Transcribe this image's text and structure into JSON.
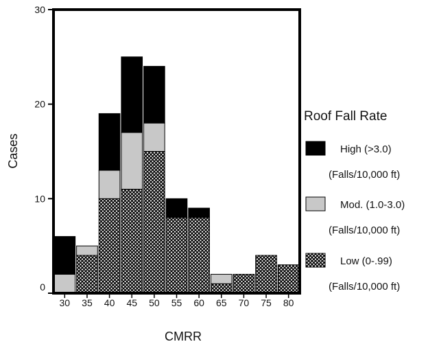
{
  "chart_data": {
    "type": "bar",
    "stacked": true,
    "xlabel": "CMRR",
    "ylabel": "Cases",
    "ylim": [
      0,
      30
    ],
    "yticks": [
      0,
      10,
      20,
      30
    ],
    "categories": [
      "30",
      "35",
      "40",
      "45",
      "50",
      "55",
      "60",
      "65",
      "70",
      "75",
      "80"
    ],
    "series": [
      {
        "key": "low",
        "fill": "crosshatch",
        "values": [
          0,
          4,
          10,
          11,
          15,
          8,
          8,
          1,
          2,
          4,
          3
        ]
      },
      {
        "key": "mod",
        "fill": "#c8c8c8",
        "values": [
          2,
          1,
          3,
          6,
          3,
          0,
          0,
          1,
          0,
          0,
          0
        ]
      },
      {
        "key": "high",
        "fill": "#000000",
        "values": [
          4,
          0,
          6,
          8,
          6,
          2,
          1,
          0,
          0,
          0,
          0
        ]
      }
    ],
    "legend": {
      "title": "Roof Fall Rate",
      "position": "right",
      "entries": [
        {
          "label": "High (>3.0)",
          "sublabel": "(Falls/10,000 ft)",
          "fill": "#000000"
        },
        {
          "label": "Mod. (1.0-3.0)",
          "sublabel": "(Falls/10,000 ft)",
          "fill": "#c8c8c8"
        },
        {
          "label": "Low (0-.99)",
          "sublabel": "(Falls/10,000 ft)",
          "fill": "crosshatch"
        }
      ]
    }
  }
}
